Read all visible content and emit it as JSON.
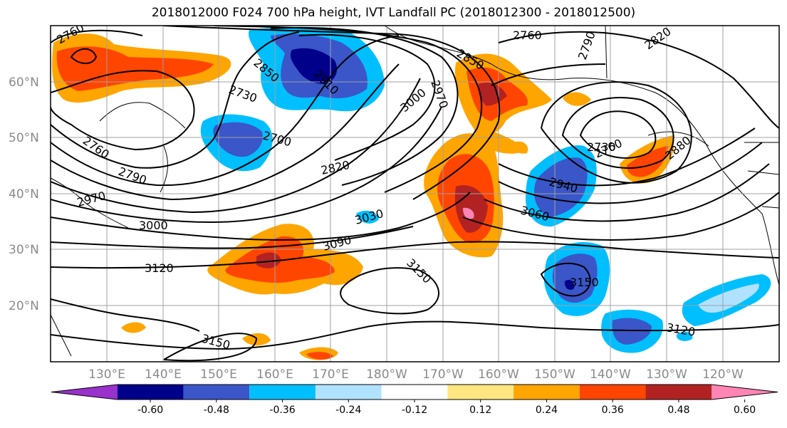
{
  "title": "2018012000 F024 700 hPa height, IVT Landfall PC (2018012300 - 2018012500)",
  "lat_labels": [
    "60°N",
    "50°N",
    "40°N",
    "30°N",
    "20°N"
  ],
  "lon_labels": [
    "130°E",
    "140°E",
    "150°E",
    "160°E",
    "170°E",
    "180°W",
    "170°W",
    "160°W",
    "150°W",
    "140°W",
    "130°W",
    "120°W"
  ],
  "contour_labels": [
    {
      "id": "c2760a",
      "text": "2760"
    },
    {
      "id": "c2760b",
      "text": "2760"
    },
    {
      "id": "c2790a",
      "text": "2790"
    },
    {
      "id": "c2820a",
      "text": "2820"
    },
    {
      "id": "c2850a",
      "text": "2850"
    },
    {
      "id": "c2850b",
      "text": "2850"
    },
    {
      "id": "c2910a",
      "text": "2910"
    },
    {
      "id": "c2730a",
      "text": "2730"
    },
    {
      "id": "c3000a",
      "text": "3000"
    },
    {
      "id": "c2970a",
      "text": "2970"
    },
    {
      "id": "c2760c",
      "text": "2760"
    },
    {
      "id": "c2790b",
      "text": "2790"
    },
    {
      "id": "c2700a",
      "text": "2700"
    },
    {
      "id": "c2820b",
      "text": "2820"
    },
    {
      "id": "c2730b",
      "text": "2730"
    },
    {
      "id": "c2760d",
      "text": "2760"
    },
    {
      "id": "c2880a",
      "text": "2880"
    },
    {
      "id": "c2940a",
      "text": "2940"
    },
    {
      "id": "c2970b",
      "text": "2970"
    },
    {
      "id": "c3000b",
      "text": "3000"
    },
    {
      "id": "c3030a",
      "text": "3030"
    },
    {
      "id": "c3060a",
      "text": "3060"
    },
    {
      "id": "c3090a",
      "text": "3090"
    },
    {
      "id": "c3120a",
      "text": "3120"
    },
    {
      "id": "c3150a",
      "text": "3150"
    },
    {
      "id": "c3150b",
      "text": "3150"
    },
    {
      "id": "c3150c",
      "text": "3150"
    },
    {
      "id": "c3120b",
      "text": "3120"
    }
  ],
  "colorbar": {
    "colors": [
      "#9932cc",
      "#00008b",
      "#3a56c8",
      "#00bfff",
      "#b0e2ff",
      "#ffffff",
      "#ffe680",
      "#ffa500",
      "#ff4500",
      "#b22222",
      "#ff85b5"
    ],
    "tick_labels": [
      "-0.60",
      "-0.48",
      "-0.36",
      "-0.24",
      "-0.12",
      "0.12",
      "0.24",
      "0.36",
      "0.48",
      "0.60"
    ]
  }
}
